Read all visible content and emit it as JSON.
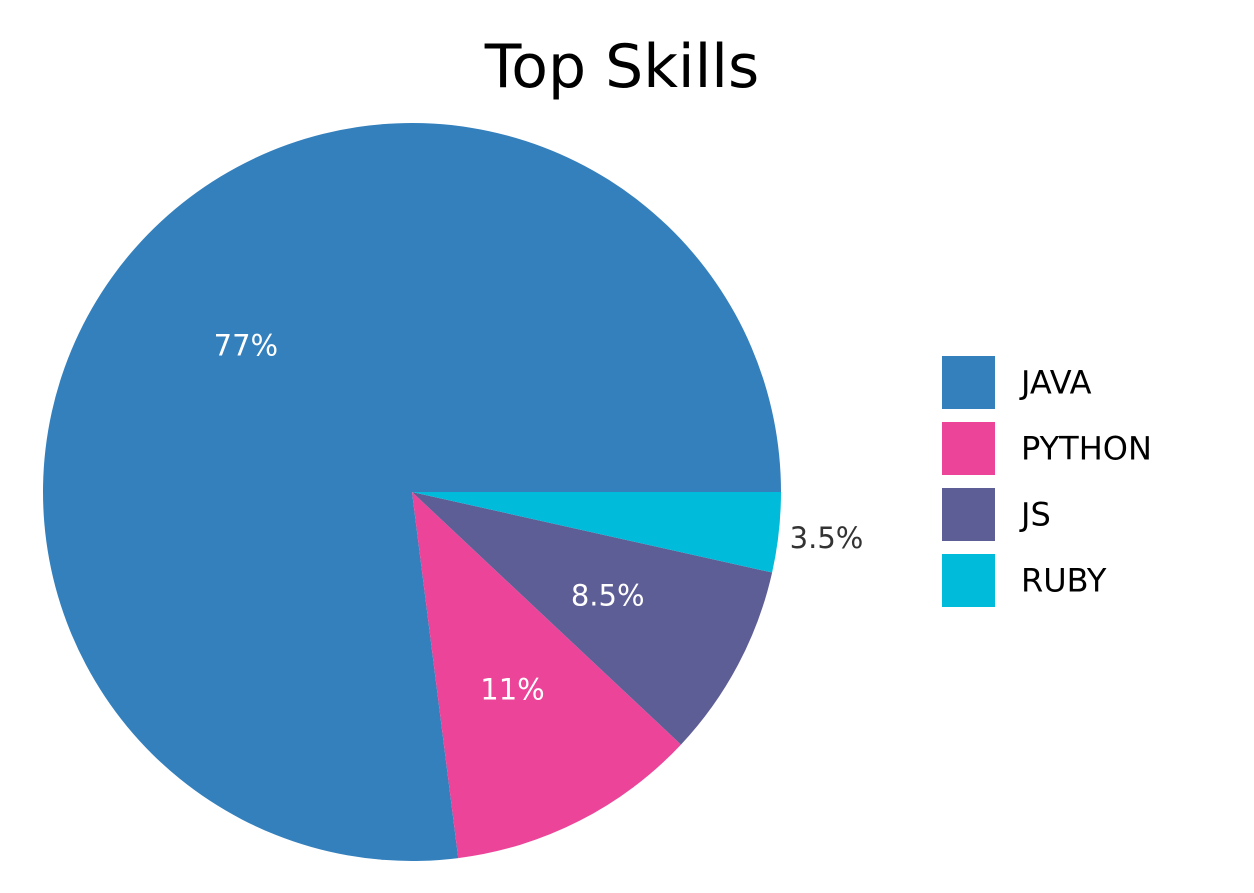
{
  "chart_data": {
    "type": "pie",
    "title": "Top Skills",
    "slices": [
      {
        "name": "JAVA",
        "value": 77,
        "label": "77%",
        "color": "#3480bd",
        "label_color": "#ffffff"
      },
      {
        "name": "PYTHON",
        "value": 11,
        "label": "11%",
        "color": "#ec4499",
        "label_color": "#ffffff"
      },
      {
        "name": "JS",
        "value": 8.5,
        "label": "8.5%",
        "color": "#5e5e96",
        "label_color": "#ffffff"
      },
      {
        "name": "RUBY",
        "value": 3.5,
        "label": "3.5%",
        "color": "#00bbd9",
        "label_color": "#333333"
      }
    ],
    "legend": "right",
    "start": "3 o'clock",
    "direction": "counterclockwise"
  }
}
